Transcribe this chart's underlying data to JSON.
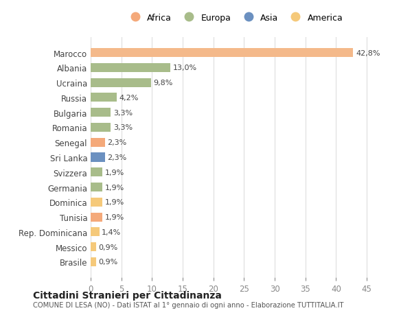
{
  "categories": [
    "Brasile",
    "Messico",
    "Rep. Dominicana",
    "Tunisia",
    "Dominica",
    "Germania",
    "Svizzera",
    "Sri Lanka",
    "Senegal",
    "Romania",
    "Bulgaria",
    "Russia",
    "Ucraina",
    "Albania",
    "Marocco"
  ],
  "values": [
    0.9,
    0.9,
    1.4,
    1.9,
    1.9,
    1.9,
    1.9,
    2.3,
    2.3,
    3.3,
    3.3,
    4.2,
    9.8,
    13.0,
    42.8
  ],
  "labels": [
    "0,9%",
    "0,9%",
    "1,4%",
    "1,9%",
    "1,9%",
    "1,9%",
    "1,9%",
    "2,3%",
    "2,3%",
    "3,3%",
    "3,3%",
    "4,2%",
    "9,8%",
    "13,0%",
    "42,8%"
  ],
  "colors": [
    "#F5C97A",
    "#F5C97A",
    "#F5C97A",
    "#F4A97A",
    "#F5C97A",
    "#A8BC8A",
    "#A8BC8A",
    "#6B90C0",
    "#F4A97A",
    "#A8BC8A",
    "#A8BC8A",
    "#A8BC8A",
    "#A8BC8A",
    "#A8BC8A",
    "#F4B98A"
  ],
  "legend_names": [
    "Africa",
    "Europa",
    "Asia",
    "America"
  ],
  "legend_colors": [
    "#F4A97A",
    "#A8BC8A",
    "#6B90C0",
    "#F5C97A"
  ],
  "title": "Cittadini Stranieri per Cittadinanza",
  "subtitle": "COMUNE DI LESA (NO) - Dati ISTAT al 1° gennaio di ogni anno - Elaborazione TUTTITALIA.IT",
  "xlim": [
    0,
    47
  ],
  "xticks": [
    0,
    5,
    10,
    15,
    20,
    25,
    30,
    35,
    40,
    45
  ],
  "background_color": "#ffffff",
  "grid_color": "#dddddd"
}
